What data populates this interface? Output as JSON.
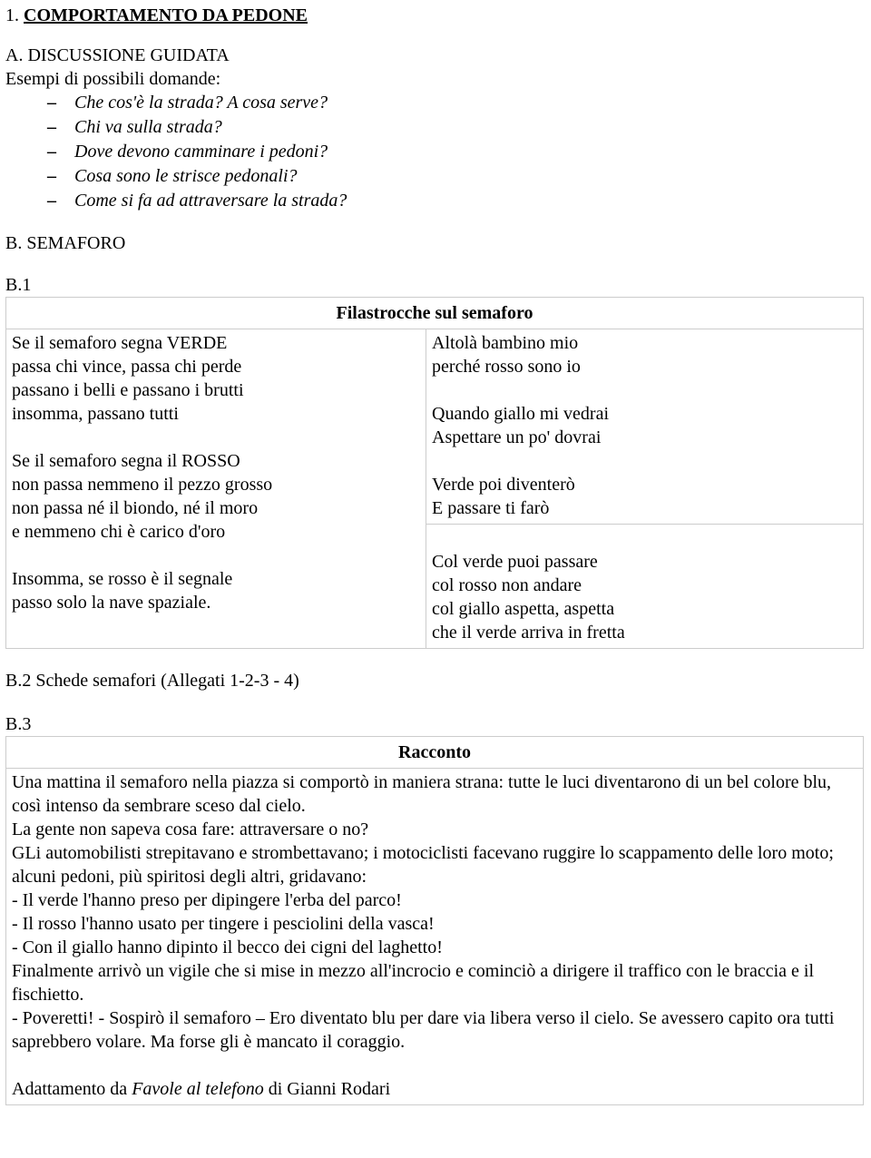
{
  "title": {
    "number": "1. ",
    "text": "COMPORTAMENTO DA PEDONE"
  },
  "sectionA": {
    "heading": "A. DISCUSSIONE GUIDATA",
    "intro": "Esempi di possibili domande:",
    "questions": [
      "Che cos'è la strada? A cosa serve?",
      "Chi va sulla strada?",
      "Dove devono camminare i pedoni?",
      "Cosa sono le strisce pedonali?",
      "Come si fa ad attraversare la strada?"
    ]
  },
  "sectionB": {
    "heading": "B. SEMAFORO",
    "b1": {
      "label": "B.1",
      "tableTitle": "Filastrocche sul semaforo",
      "poemLeft": "Se il semaforo segna VERDE\npassa chi vince, passa chi perde\npassano i belli e passano i brutti\ninsomma, passano tutti\n\nSe il semaforo segna il ROSSO\nnon passa nemmeno il pezzo grosso\nnon passa né il biondo, né il moro\ne nemmeno chi è carico d'oro\n\nInsomma, se rosso è il segnale\npasso solo la nave spaziale.",
      "poemRightTop": "Altolà bambino mio\nperché rosso sono io\n\nQuando giallo mi vedrai\nAspettare un po' dovrai\n\nVerde poi diventerò\nE passare ti farò",
      "poemRightBottom": "\nCol verde puoi passare\ncol rosso non andare\ncol giallo aspetta, aspetta\nche il verde arriva in fretta"
    },
    "b2": {
      "text": "B.2 Schede semafori  (Allegati 1-2-3 - 4)"
    },
    "b3": {
      "label": "B.3",
      "tableTitle": "Racconto",
      "story": {
        "p1": "Una mattina il semaforo nella piazza si comportò in maniera strana: tutte le luci diventarono di un bel colore blu, così intenso da sembrare sceso dal cielo.",
        "p2": "La gente non sapeva cosa fare: attraversare o no?",
        "p3": "GLi automobilisti strepitavano e strombettavano; i motociclisti facevano ruggire lo scappamento delle loro moto; alcuni pedoni, più spiritosi degli altri, gridavano:",
        "l1": "- Il verde l'hanno preso per dipingere l'erba del parco!",
        "l2": "- Il rosso l'hanno usato per tingere i pesciolini della vasca!",
        "l3": "- Con il giallo hanno dipinto il becco dei cigni del laghetto!",
        "p4": "Finalmente arrivò un vigile che si mise in mezzo all'incrocio e cominciò a dirigere il traffico con le braccia e il fischietto.",
        "p5": "- Poveretti! - Sospirò il semaforo – Ero diventato blu per dare via libera verso il cielo. Se avessero capito ora tutti saprebbero volare. Ma forse gli è mancato il coraggio.",
        "creditPrefix": "Adattamento da ",
        "creditItalic": "Favole al telefono",
        "creditSuffix": " di Gianni Rodari"
      }
    }
  }
}
